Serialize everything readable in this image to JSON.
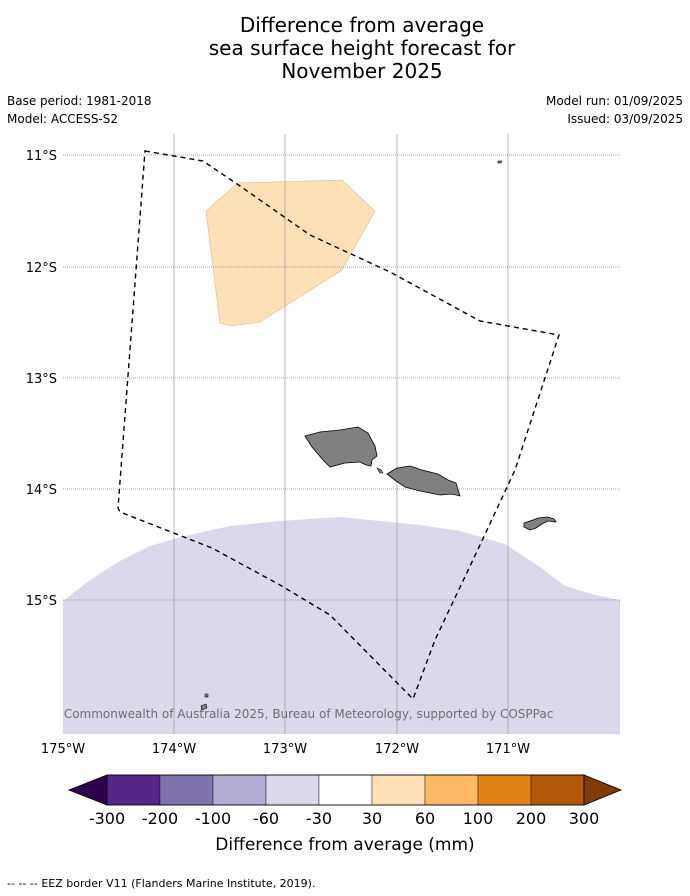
{
  "title": {
    "line1": "Difference from average",
    "line2": "sea surface height forecast for",
    "line3": "November 2025"
  },
  "meta": {
    "base_period": "Base period: 1981-2018",
    "model": "Model: ACCESS-S2",
    "model_run": "Model run: 01/09/2025",
    "issued": "Issued: 03/09/2025"
  },
  "map": {
    "lat_ticks": [
      "11°S",
      "12°S",
      "13°S",
      "14°S",
      "15°S"
    ],
    "lon_ticks": [
      "175°W",
      "174°W",
      "173°W",
      "172°W",
      "171°W"
    ],
    "credit": "© Commonwealth of Australia 2025, Bureau of Meteorology, supported by COSPPac",
    "colors": {
      "land": "#808080",
      "anomaly_30_60": "#fee0b6",
      "anomaly_neg60_neg30": "#d8daeb",
      "grid": "#999999"
    }
  },
  "colorbar": {
    "labels": [
      "-300",
      "-200",
      "-100",
      "-60",
      "-30",
      "30",
      "60",
      "100",
      "200",
      "300"
    ],
    "colors": [
      "#2d004b",
      "#542788",
      "#8073ac",
      "#b2abd2",
      "#d8daeb",
      "#ffffff",
      "#fee0b6",
      "#fdb863",
      "#e08214",
      "#b35806",
      "#7f3b08"
    ],
    "title": "Difference from average (mm)"
  },
  "footer": {
    "legend_line": "--  --  --",
    "legend_text": "EEZ border V11 (Flanders Marine Institute, 2019)."
  }
}
